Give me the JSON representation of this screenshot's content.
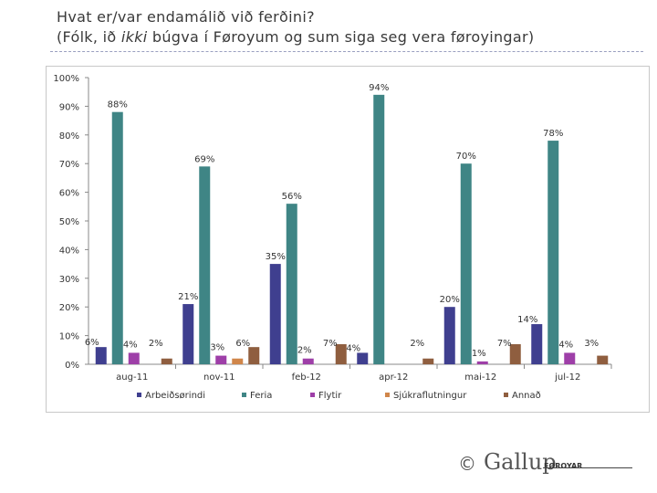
{
  "header": {
    "title_line1": "Hvat er/var endamálið við ferðini?",
    "title_line2_pre": "(Fólk, ið ",
    "title_line2_em": "ikki",
    "title_line2_post": " búgva í Føroyum og sum siga seg vera føroyingar)"
  },
  "footer": {
    "copyright": "©",
    "logo": "Gallup",
    "logo_sub": "FØROYAR"
  },
  "colors": {
    "Arbeiðsørindi": "#3f3f8f",
    "Feria": "#3f8585",
    "Flytir": "#9e3fa8",
    "Sjúkraflutningur": "#d0864a",
    "Annað": "#8f5e3f"
  },
  "chart_data": {
    "type": "bar",
    "title": "Hvat er/var endamálið við ferðini?",
    "categories": [
      "aug-11",
      "nov-11",
      "feb-12",
      "apr-12",
      "mai-12",
      "jul-12"
    ],
    "series": [
      {
        "name": "Arbeiðsørindi",
        "values": [
          6,
          21,
          35,
          4,
          20,
          14
        ]
      },
      {
        "name": "Feria",
        "values": [
          88,
          69,
          56,
          94,
          70,
          78
        ]
      },
      {
        "name": "Flytir",
        "values": [
          4,
          3,
          2,
          0,
          1,
          4
        ]
      },
      {
        "name": "Sjúkraflutningur",
        "values": [
          0,
          2,
          0,
          0,
          0,
          0
        ]
      },
      {
        "name": "Annað",
        "values": [
          2,
          6,
          7,
          2,
          7,
          3
        ]
      }
    ],
    "data_labels": [
      {
        "series": "Arbeiðsørindi",
        "category": "aug-11",
        "text": "6%"
      },
      {
        "series": "Feria",
        "category": "aug-11",
        "text": "88%"
      },
      {
        "series": "Flytir",
        "category": "aug-11",
        "text": "4%"
      },
      {
        "series": "Annað",
        "category": "aug-11",
        "text": "2%"
      },
      {
        "series": "Arbeiðsørindi",
        "category": "nov-11",
        "text": "21%"
      },
      {
        "series": "Feria",
        "category": "nov-11",
        "text": "69%"
      },
      {
        "series": "Flytir",
        "category": "nov-11",
        "text": "3%"
      },
      {
        "series": "Annað",
        "category": "nov-11",
        "text": "6%"
      },
      {
        "series": "Arbeiðsørindi",
        "category": "feb-12",
        "text": "35%"
      },
      {
        "series": "Feria",
        "category": "feb-12",
        "text": "56%"
      },
      {
        "series": "Flytir",
        "category": "feb-12",
        "text": "2%"
      },
      {
        "series": "Annað",
        "category": "feb-12",
        "text": "7%"
      },
      {
        "series": "Arbeiðsørindi",
        "category": "apr-12",
        "text": "4%"
      },
      {
        "series": "Feria",
        "category": "apr-12",
        "text": "94%"
      },
      {
        "series": "Annað",
        "category": "apr-12",
        "text": "2%"
      },
      {
        "series": "Arbeiðsørindi",
        "category": "mai-12",
        "text": "20%"
      },
      {
        "series": "Feria",
        "category": "mai-12",
        "text": "70%"
      },
      {
        "series": "Flytir",
        "category": "mai-12",
        "text": "1%"
      },
      {
        "series": "Annað",
        "category": "mai-12",
        "text": "7%"
      },
      {
        "series": "Arbeiðsørindi",
        "category": "jul-12",
        "text": "14%"
      },
      {
        "series": "Feria",
        "category": "jul-12",
        "text": "78%"
      },
      {
        "series": "Flytir",
        "category": "jul-12",
        "text": "4%"
      },
      {
        "series": "Annað",
        "category": "jul-12",
        "text": "3%"
      }
    ],
    "yticks": [
      "0%",
      "10%",
      "20%",
      "30%",
      "40%",
      "50%",
      "60%",
      "70%",
      "80%",
      "90%",
      "100%"
    ],
    "ylim": [
      0,
      100
    ],
    "xlabel": "",
    "ylabel": "",
    "legend": "bottom"
  }
}
